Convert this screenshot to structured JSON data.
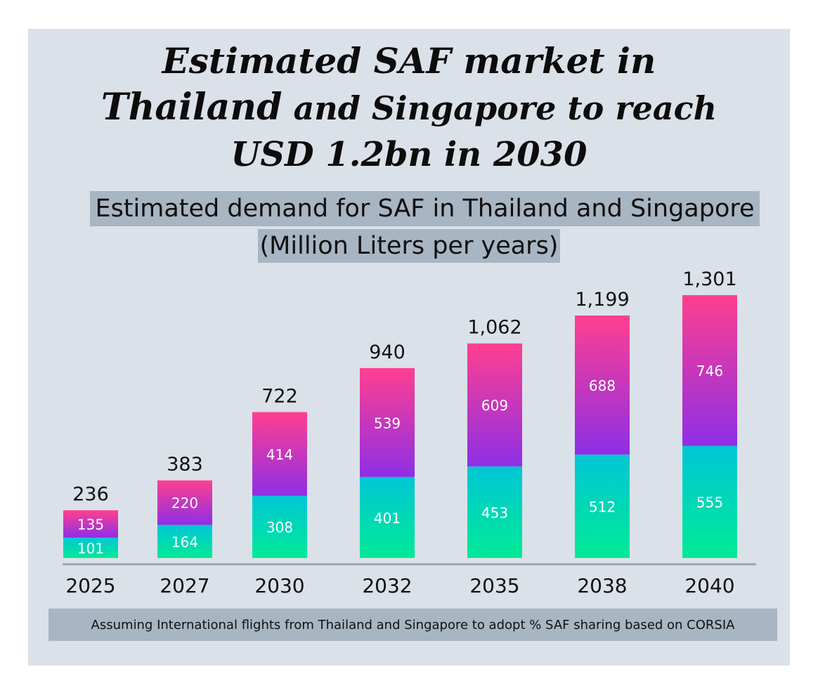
{
  "headline": {
    "line1": "Estimated SAF market in",
    "line2_a": "Thailand",
    "line2_b": "and Singapore to reach",
    "line3": "USD 1.2bn in 2030"
  },
  "chart_data": {
    "type": "bar",
    "stacked": true,
    "title": "Estimated demand for SAF in Thailand and Singapore",
    "subtitle": "(Million Liters per years)",
    "categories": [
      "2025",
      "2027",
      "2030",
      "2032",
      "2035",
      "2038",
      "2040"
    ],
    "series": [
      {
        "values": [
          101,
          164,
          308,
          401,
          453,
          512,
          555
        ],
        "colors": [
          "#00ea96",
          "#00c6d6"
        ]
      },
      {
        "values": [
          135,
          220,
          414,
          539,
          609,
          688,
          746
        ],
        "colors": [
          "#8d2fe6",
          "#ff3f90"
        ]
      }
    ],
    "totals": [
      "236",
      "383",
      "722",
      "940",
      "1,062",
      "1,199",
      "1,301"
    ],
    "ylim": [
      0,
      1301
    ],
    "grid": false,
    "legend": "none"
  },
  "footnote": "Assuming International flights from Thailand and Singapore to adopt % SAF sharing based on CORSIA",
  "colors": {
    "panel": "#dbe1e8",
    "label_box": "#a8b5c2",
    "axis": "#9aa5b1"
  }
}
